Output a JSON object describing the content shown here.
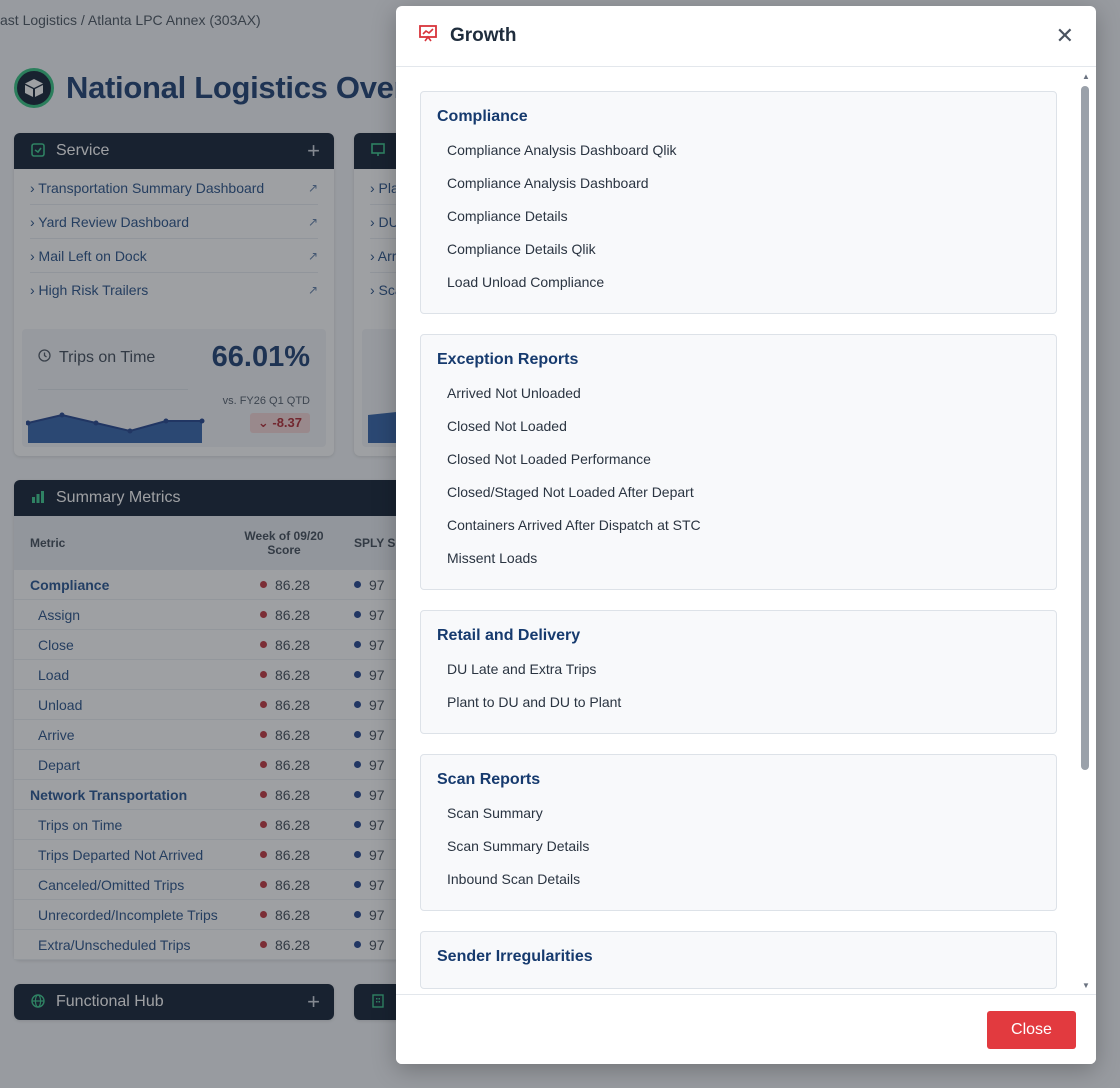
{
  "breadcrumb": "ast Logistics / Atlanta LPC Annex (303AX)",
  "page_title": "National Logistics Overvie",
  "service_card": {
    "title": "Service",
    "links": [
      "› Transportation Summary Dashboard",
      "› Yard Review Dashboard",
      "› Mail Left on Dock",
      "› High Risk Trailers"
    ],
    "kpi": {
      "label": "Trips on Time",
      "value": "66.01%",
      "comparison": "vs. FY26 Q1 QTD",
      "delta": "-8.37"
    }
  },
  "second_card": {
    "links": [
      "› Pla",
      "› DU",
      "› Arr",
      "› Sca"
    ]
  },
  "summary_metrics": {
    "title": "Summary Metrics",
    "columns": [
      "Metric",
      "Week of 09/20 Score",
      "SPLY S"
    ],
    "rows": [
      {
        "metric": "Compliance",
        "score": "86.28",
        "sply": "97",
        "group": true
      },
      {
        "metric": "Assign",
        "score": "86.28",
        "sply": "97",
        "group": false
      },
      {
        "metric": "Close",
        "score": "86.28",
        "sply": "97",
        "group": false
      },
      {
        "metric": "Load",
        "score": "86.28",
        "sply": "97",
        "group": false
      },
      {
        "metric": "Unload",
        "score": "86.28",
        "sply": "97",
        "group": false
      },
      {
        "metric": "Arrive",
        "score": "86.28",
        "sply": "97",
        "group": false
      },
      {
        "metric": "Depart",
        "score": "86.28",
        "sply": "97",
        "group": false
      },
      {
        "metric": "Network Transportation",
        "score": "86.28",
        "sply": "97",
        "group": true
      },
      {
        "metric": "Trips on Time",
        "score": "86.28",
        "sply": "97",
        "group": false
      },
      {
        "metric": "Trips Departed Not Arrived",
        "score": "86.28",
        "sply": "97",
        "group": false
      },
      {
        "metric": "Canceled/Omitted Trips",
        "score": "86.28",
        "sply": "97",
        "group": false
      },
      {
        "metric": "Unrecorded/Incomplete Trips",
        "score": "86.28",
        "sply": "97",
        "group": false
      },
      {
        "metric": "Extra/Unscheduled Trips",
        "score": "86.28",
        "sply": "97",
        "group": false
      }
    ]
  },
  "functional_hub": {
    "title": "Functional Hub"
  },
  "modal": {
    "title": "Growth",
    "sections": [
      {
        "title": "Compliance",
        "items": [
          "Compliance Analysis Dashboard Qlik",
          "Compliance Analysis Dashboard",
          "Compliance Details",
          "Compliance Details Qlik",
          "Load Unload Compliance"
        ]
      },
      {
        "title": "Exception Reports",
        "items": [
          "Arrived Not Unloaded",
          "Closed Not Loaded",
          "Closed Not Loaded Performance",
          "Closed/Staged Not Loaded After Depart",
          "Containers Arrived After Dispatch at STC",
          "Missent Loads"
        ]
      },
      {
        "title": "Retail and Delivery",
        "items": [
          "DU Late and Extra Trips",
          "Plant to DU and DU to Plant"
        ]
      },
      {
        "title": "Scan Reports",
        "items": [
          "Scan Summary",
          "Scan Summary Details",
          "Inbound Scan Details"
        ]
      },
      {
        "title": "Sender Irregularities",
        "items": []
      }
    ],
    "close_label": "Close"
  },
  "colors": {
    "header_bg": "#0c1a2e",
    "accent_green": "#35c98a",
    "title_blue": "#163a6e",
    "close_red": "#e23a3f"
  }
}
